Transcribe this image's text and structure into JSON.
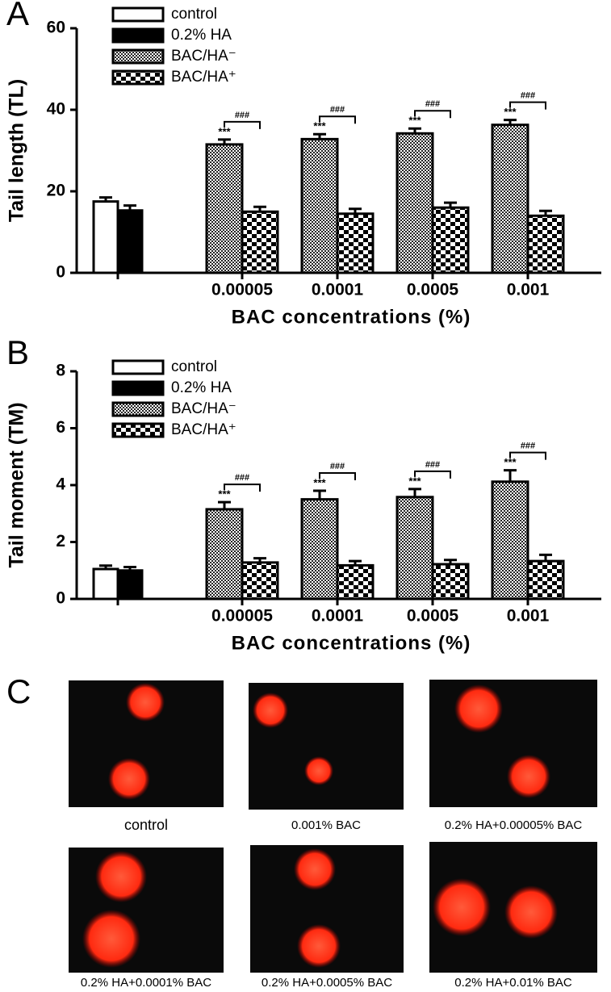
{
  "chart_data": [
    {
      "type": "bar",
      "panel": "A",
      "ylabel": "Tail length (TL)",
      "xlabel": "BAC concentrations (%)",
      "categories": [
        null,
        "0.00005",
        "0.0001",
        "0.0005",
        "0.001"
      ],
      "series": [
        {
          "name": "control",
          "color": "#ffffff",
          "values": [
            17.5,
            null,
            null,
            null,
            null
          ],
          "errors": [
            1,
            null,
            null,
            null,
            null
          ]
        },
        {
          "name": "0.2% HA",
          "color": "#000000",
          "values": [
            15.3,
            null,
            null,
            null,
            null
          ],
          "errors": [
            1.2,
            null,
            null,
            null,
            null
          ]
        },
        {
          "name": "BAC/HA⁻",
          "color": "hatch",
          "values": [
            null,
            31.5,
            32.8,
            34.2,
            36.3
          ],
          "errors": [
            null,
            1.2,
            1.2,
            1.2,
            1.2
          ]
        },
        {
          "name": "BAC/HA⁺",
          "color": "checker",
          "values": [
            null,
            15,
            14.5,
            16,
            14
          ],
          "errors": [
            null,
            1.2,
            1.2,
            1.2,
            1.2
          ]
        }
      ],
      "ylim": [
        0,
        60
      ],
      "yticks": [
        0,
        20,
        40,
        60
      ],
      "star_annotation": "***",
      "bracket_annotation": "###"
    },
    {
      "type": "bar",
      "panel": "B",
      "ylabel": "Tail moment (TM)",
      "xlabel": "BAC concentrations (%)",
      "categories": [
        null,
        "0.00005",
        "0.0001",
        "0.0005",
        "0.001"
      ],
      "series": [
        {
          "name": "control",
          "color": "#ffffff",
          "values": [
            1.05,
            null,
            null,
            null,
            null
          ],
          "errors": [
            0.12,
            null,
            null,
            null,
            null
          ]
        },
        {
          "name": "0.2% HA",
          "color": "#000000",
          "values": [
            1.0,
            null,
            null,
            null,
            null
          ],
          "errors": [
            0.12,
            null,
            null,
            null,
            null
          ]
        },
        {
          "name": "BAC/HA⁻",
          "color": "hatch",
          "values": [
            null,
            3.15,
            3.5,
            3.58,
            4.12
          ],
          "errors": [
            null,
            0.25,
            0.3,
            0.28,
            0.4
          ]
        },
        {
          "name": "BAC/HA⁺",
          "color": "checker",
          "values": [
            null,
            1.28,
            1.18,
            1.22,
            1.33
          ],
          "errors": [
            null,
            0.15,
            0.15,
            0.15,
            0.22
          ]
        }
      ],
      "ylim": [
        0,
        8
      ],
      "yticks": [
        0,
        2,
        4,
        6,
        8
      ],
      "star_annotation": "***",
      "bracket_annotation": "###"
    }
  ],
  "panel_c": {
    "label": "C",
    "captions": [
      "control",
      "0.001% BAC",
      "0.2% HA+0.00005% BAC",
      "0.2% HA+0.0001% BAC",
      "0.2% HA+0.0005% BAC",
      "0.2% HA+0.01% BAC"
    ]
  }
}
